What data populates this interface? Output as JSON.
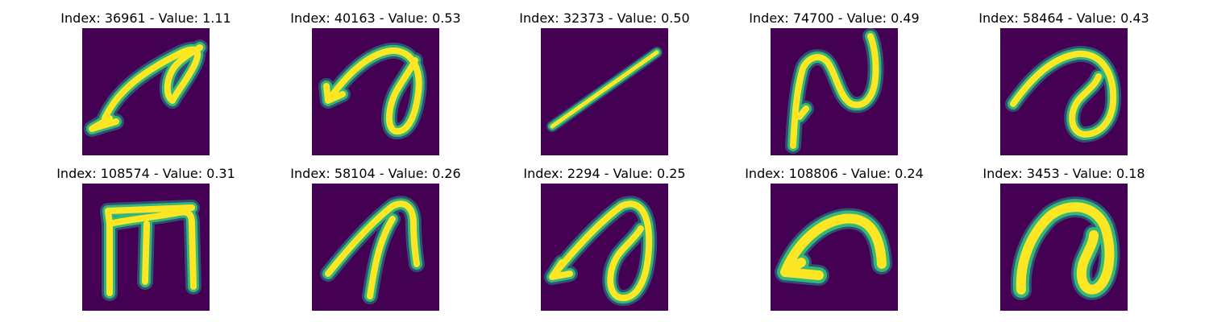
{
  "colors": {
    "background": "#440154",
    "stroke_inner": "#fde725",
    "stroke_edge": "#35b779",
    "stroke_halo": "#21918c"
  },
  "images": [
    {
      "title": "Index: 36961 - Value: 1.11"
    },
    {
      "title": "Index: 40163 - Value: 0.53"
    },
    {
      "title": "Index: 32373 - Value: 0.50"
    },
    {
      "title": "Index: 74700 - Value: 0.49"
    },
    {
      "title": "Index: 58464 - Value: 0.43"
    },
    {
      "title": "Index: 108574 - Value: 0.31"
    },
    {
      "title": "Index: 58104 - Value: 0.26"
    },
    {
      "title": "Index: 2294 - Value: 0.25"
    },
    {
      "title": "Index: 108806 - Value: 0.24"
    },
    {
      "title": "Index: 3453 - Value: 0.18"
    }
  ]
}
